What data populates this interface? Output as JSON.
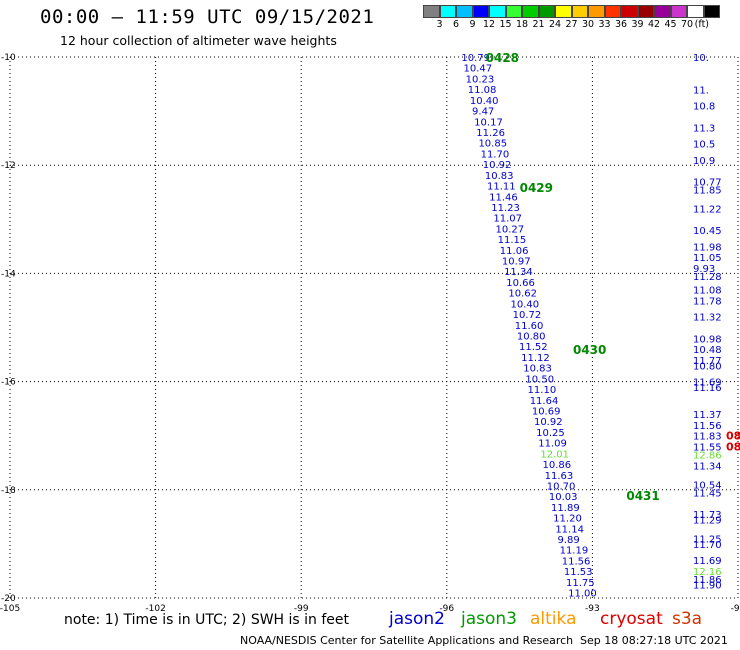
{
  "header": {
    "title": "00:00 – 11:59 UTC 09/15/2021",
    "subtitle": "12 hour collection of altimeter wave heights"
  },
  "legend": {
    "unit": "(ft)",
    "colors": [
      "#808080",
      "#00ffff",
      "#00bfff",
      "#0000ff",
      "#00ffff",
      "#33ff33",
      "#00cc00",
      "#009900",
      "#ffff00",
      "#ffcc00",
      "#ff9900",
      "#ff3300",
      "#cc0000",
      "#990000",
      "#990099",
      "#cc33cc",
      "#ffffff",
      "#000000"
    ],
    "labels": [
      "3",
      "6",
      "9",
      "12",
      "15",
      "18",
      "21",
      "24",
      "27",
      "30",
      "33",
      "36",
      "39",
      "42",
      "45",
      "70"
    ]
  },
  "map": {
    "lat_labels": [
      "-10",
      "-12",
      "-14",
      "-16",
      "-18",
      "-20"
    ],
    "lon_labels": [
      "-105",
      "-102",
      "-99",
      "-96",
      "-93",
      "-90"
    ]
  },
  "chart_data": {
    "type": "map",
    "lat_range": [
      -20,
      -10
    ],
    "lon_range": [
      -105,
      -90
    ],
    "track_labels": [
      {
        "text": "0428",
        "lon": -95.2,
        "lat": -10.0
      },
      {
        "text": "0429",
        "lon": -94.5,
        "lat": -12.4
      },
      {
        "text": "0430",
        "lon": -93.4,
        "lat": -15.4
      },
      {
        "text": "0431",
        "lon": -92.3,
        "lat": -18.1
      }
    ],
    "track_main": {
      "color": "#0000cc",
      "highlight_color": "#66dd33",
      "start": {
        "lon": -95.7,
        "lat": -10.0
      },
      "end": {
        "lon": -93.5,
        "lat": -19.9
      },
      "values": [
        "10.79",
        "10.47",
        "10.23",
        "11.08",
        "10.40",
        "9.47",
        "10.17",
        "11.26",
        "10.85",
        "11.70",
        "10.92",
        "10.83",
        "11.11",
        "11.46",
        "11.23",
        "11.07",
        "10.27",
        "11.15",
        "11.06",
        "10.97",
        "11.34",
        "10.66",
        "10.62",
        "10.40",
        "10.72",
        "11.60",
        "10.80",
        "11.52",
        "11.12",
        "10.83",
        "10.50",
        "11.10",
        "11.64",
        "10.69",
        "10.92",
        "10.25",
        "11.09",
        "12.01",
        "10.86",
        "11.63",
        "10.70",
        "10.03",
        "11.89",
        "11.20",
        "11.14",
        "9.89",
        "11.19",
        "11.56",
        "11.53",
        "11.75",
        "11.00"
      ]
    },
    "track_right": {
      "color": "#0000cc",
      "values": [
        {
          "text": "10.",
          "lat": -10.0
        },
        {
          "text": "11.",
          "lat": -10.6
        },
        {
          "text": "10.8",
          "lat": -10.9
        },
        {
          "text": "11.3",
          "lat": -11.3
        },
        {
          "text": "10.5",
          "lat": -11.6
        },
        {
          "text": "10.9",
          "lat": -11.9
        },
        {
          "text": "10.77",
          "lat": -12.3
        },
        {
          "text": "11.85",
          "lat": -12.45
        },
        {
          "text": "11.22",
          "lat": -12.8
        },
        {
          "text": "10.45",
          "lat": -13.2
        },
        {
          "text": "11.98",
          "lat": -13.5
        },
        {
          "text": "11.05",
          "lat": -13.7
        },
        {
          "text": "9.93",
          "lat": -13.9
        },
        {
          "text": "11.28",
          "lat": -14.05
        },
        {
          "text": "11.08",
          "lat": -14.3
        },
        {
          "text": "11.78",
          "lat": -14.5
        },
        {
          "text": "11.32",
          "lat": -14.8
        },
        {
          "text": "10.98",
          "lat": -15.2
        },
        {
          "text": "10.48",
          "lat": -15.4
        },
        {
          "text": "11.77",
          "lat": -15.6
        },
        {
          "text": "10.80",
          "lat": -15.7
        },
        {
          "text": "11.69",
          "lat": -16.0
        },
        {
          "text": "11.16",
          "lat": -16.1
        },
        {
          "text": "11.37",
          "lat": -16.6
        },
        {
          "text": "11.56",
          "lat": -16.8
        },
        {
          "text": "11.83",
          "lat": -17.0
        },
        {
          "text": "11.55",
          "lat": -17.2
        },
        {
          "text": "12.86",
          "lat": -17.35
        },
        {
          "text": "11.34",
          "lat": -17.55
        },
        {
          "text": "10.54",
          "lat": -17.9
        },
        {
          "text": "11.45",
          "lat": -18.05
        },
        {
          "text": "11.73",
          "lat": -18.45
        },
        {
          "text": "11.29",
          "lat": -18.55
        },
        {
          "text": "11.25",
          "lat": -18.9
        },
        {
          "text": "11.70",
          "lat": -19.0
        },
        {
          "text": "11.69",
          "lat": -19.3
        },
        {
          "text": "12.16",
          "lat": -19.5
        },
        {
          "text": "11.86",
          "lat": -19.65
        },
        {
          "text": "11.90",
          "lat": -19.75
        }
      ]
    },
    "edge_red": [
      {
        "text": "08",
        "lat": -17.0
      },
      {
        "text": "08",
        "lat": -17.2
      }
    ]
  },
  "note": "note: 1) Time is in UTC; 2) SWH is in feet",
  "satellites": [
    {
      "name": "jason2",
      "color": "#0000cc"
    },
    {
      "name": "jason3",
      "color": "#009900"
    },
    {
      "name": "altika",
      "color": "#ff9900"
    },
    {
      "name": "cryosat",
      "color": "#dd0000"
    },
    {
      "name": "s3a",
      "color": "#cc3300"
    }
  ],
  "footer": "NOAA/NESDIS Center for Satellite Applications and Research",
  "timestamp": "Sep 18 08:27:18 UTC 2021"
}
